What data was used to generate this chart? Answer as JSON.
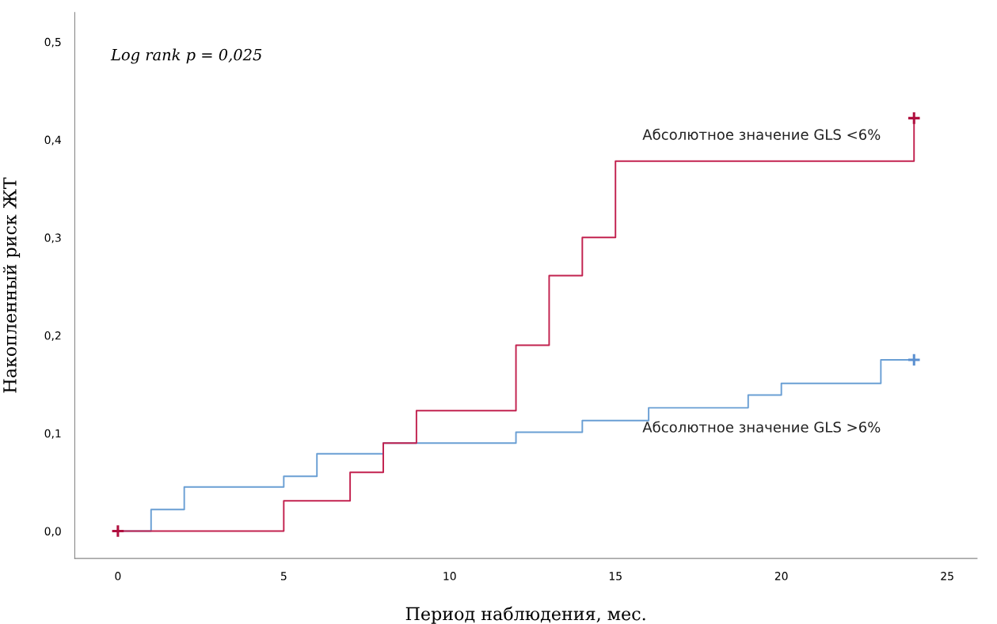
{
  "chart_data": {
    "type": "step",
    "xlabel": "Период наблюдения, мес.",
    "ylabel": "Накопленный риск ЖТ",
    "annotations": [
      "Log rank p = 0,025"
    ],
    "xlim": [
      -1.3,
      25.9
    ],
    "xticks": [
      0,
      5,
      10,
      15,
      20,
      25
    ],
    "ylim": [
      -0.028,
      0.53
    ],
    "yticks": [
      {
        "value": 0,
        "label": "0,0"
      },
      {
        "value": 0.1,
        "label": "0,1"
      },
      {
        "value": 0.2,
        "label": "0,2"
      },
      {
        "value": 0.3,
        "label": "0,3"
      },
      {
        "value": 0.4,
        "label": "0,4"
      },
      {
        "value": 0.5,
        "label": "0,5"
      }
    ],
    "grid": false,
    "legend": false,
    "series": [
      {
        "name": "Абсолютное значение GLS >6%",
        "color": "#6a9fd4",
        "x": [
          0,
          1,
          2,
          5,
          6,
          8,
          12,
          14,
          16,
          19,
          20,
          23,
          24
        ],
        "values": [
          0,
          0.022,
          0.045,
          0.056,
          0.079,
          0.09,
          0.101,
          0.113,
          0.126,
          0.139,
          0.151,
          0.175,
          0.175
        ]
      },
      {
        "name": "Абсолютное значение GLS <6%",
        "color": "#c2224f",
        "x": [
          0,
          5,
          7,
          8,
          9,
          12,
          13,
          14,
          15,
          24
        ],
        "values": [
          0,
          0.031,
          0.06,
          0.09,
          0.123,
          0.19,
          0.261,
          0.3,
          0.378,
          0.422
        ]
      },
      {
        "type": "scatter",
        "marker": "cross",
        "color": "#5a8fd0",
        "x": [
          24
        ],
        "values": [
          0.175
        ]
      },
      {
        "type": "scatter",
        "marker": "cross",
        "color": "#b0103f",
        "x": [
          0,
          24
        ],
        "values": [
          0,
          0.422
        ]
      }
    ]
  }
}
